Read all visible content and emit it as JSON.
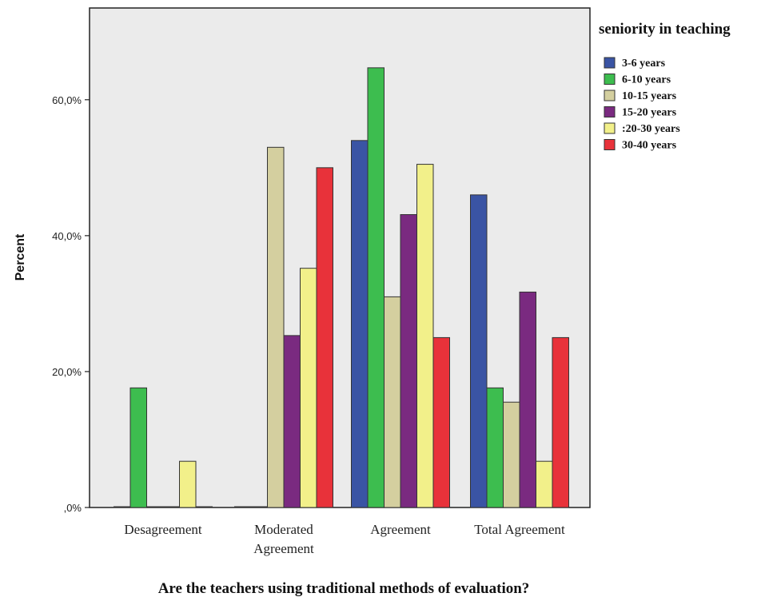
{
  "chart_data": {
    "type": "bar",
    "categories": [
      "Desagreement",
      "Moderated Agreement",
      "Agreement",
      "Total Agreement"
    ],
    "series": [
      {
        "name": "3-6 years",
        "color": "#3a54a4",
        "values": [
          0,
          0,
          54,
          46
        ]
      },
      {
        "name": "6-10 years",
        "color": "#3dbd4f",
        "values": [
          17.6,
          0,
          64.7,
          17.6
        ]
      },
      {
        "name": "10-15 years",
        "color": "#d4cf9f",
        "values": [
          0,
          53,
          31,
          15.5
        ]
      },
      {
        "name": "15-20 years",
        "color": "#7a2a80",
        "values": [
          0,
          25.3,
          43.1,
          31.7
        ]
      },
      {
        "name": "20-30 years",
        "color": "#f2f08a",
        "values": [
          6.8,
          35.2,
          50.5,
          6.8
        ]
      },
      {
        "name": "30-40 years",
        "color": "#e8323a",
        "values": [
          0,
          50,
          25,
          25
        ]
      }
    ],
    "legend_labels": [
      "3-6 years",
      "6-10 years",
      "10-15 years",
      "15-20 years",
      ":20-30 years",
      "30-40 years"
    ],
    "legend_title": "seniority in teaching",
    "legend_position": "right",
    "xlabel": "Are the teachers using traditional methods of evaluation?",
    "ylabel": "Percent",
    "category_labels": [
      [
        "Desagreement"
      ],
      [
        "Moderated",
        "Agreement"
      ],
      [
        "Agreement"
      ],
      [
        "Total Agreement"
      ]
    ],
    "yticks": [
      0,
      20,
      40,
      60
    ],
    "ytick_labels": [
      ",0%",
      "20,0%",
      "40,0%",
      "60,0%"
    ],
    "ylim": [
      0,
      73.5
    ],
    "plot_background": "#ebebeb",
    "grid": false
  }
}
